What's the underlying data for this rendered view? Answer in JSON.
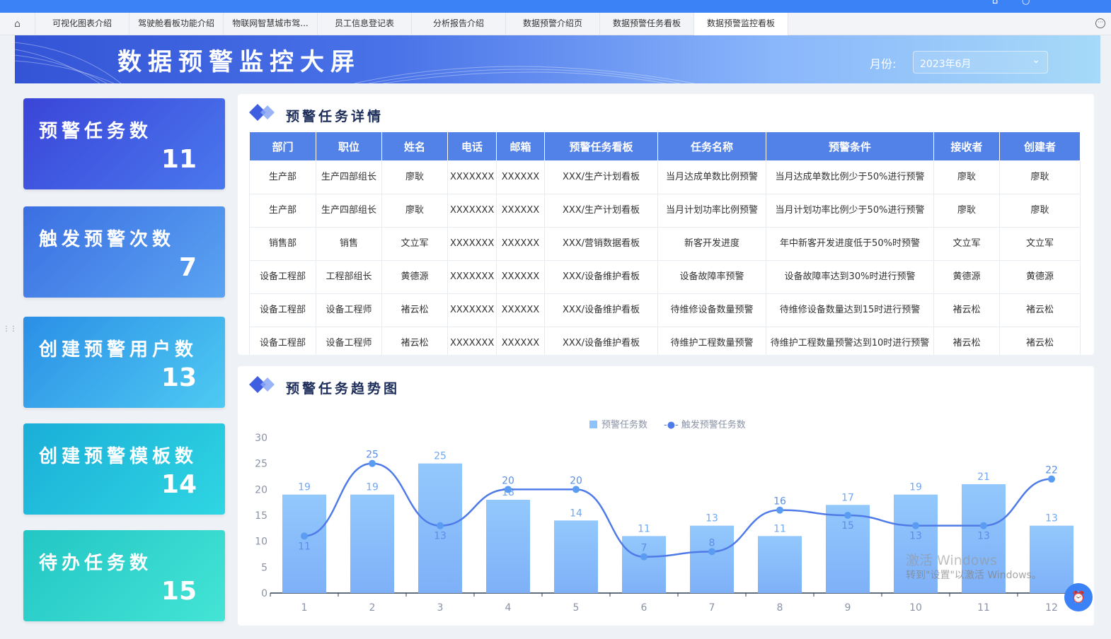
{
  "tabs": {
    "items": [
      "可视化图表介绍",
      "驾驶舱看板功能介绍",
      "物联网智慧城市驾...",
      "员工信息登记表",
      "分析报告介绍",
      "数据预警介绍页",
      "数据预警任务看板",
      "数据预警监控看板"
    ],
    "active": "数据预警监控看板"
  },
  "banner": {
    "title": "数据预警监控大屏",
    "month_label": "月份:",
    "month_value": "2023年6月"
  },
  "cards": [
    {
      "label": "预警任务数",
      "value": "11"
    },
    {
      "label": "触发预警次数",
      "value": "7"
    },
    {
      "label": "创建预警用户数",
      "value": "13"
    },
    {
      "label": "创建预警模板数",
      "value": "14"
    },
    {
      "label": "待办任务数",
      "value": "15"
    }
  ],
  "table_panel": {
    "title": "预警任务详情",
    "columns": [
      "部门",
      "职位",
      "姓名",
      "电话",
      "邮箱",
      "预警任务看板",
      "任务名称",
      "预警条件",
      "接收者",
      "创建者"
    ],
    "rows": [
      [
        "生产部",
        "生产四部组长",
        "廖耿",
        "XXXXXXX",
        "XXXXXX",
        "XXX/生产计划看板",
        "当月达成单数比例预警",
        "当月达成单数比例少于50%进行预警",
        "廖耿",
        "廖耿"
      ],
      [
        "生产部",
        "生产四部组长",
        "廖耿",
        "XXXXXXX",
        "XXXXXX",
        "XXX/生产计划看板",
        "当月计划功率比例预警",
        "当月计划功率比例少于50%进行预警",
        "廖耿",
        "廖耿"
      ],
      [
        "销售部",
        "销售",
        "文立军",
        "XXXXXXX",
        "XXXXXX",
        "XXX/营销数据看板",
        "新客开发进度",
        "年中新客开发进度低于50%时预警",
        "文立军",
        "文立军"
      ],
      [
        "设备工程部",
        "工程部组长",
        "黄德源",
        "XXXXXXX",
        "XXXXXX",
        "XXX/设备维护看板",
        "设备故障率预警",
        "设备故障率达到30%时进行预警",
        "黄德源",
        "黄德源"
      ],
      [
        "设备工程部",
        "设备工程师",
        "褚云松",
        "XXXXXXX",
        "XXXXXX",
        "XXX/设备维护看板",
        "待维修设备数量预警",
        "待维修设备数量达到15时进行预警",
        "褚云松",
        "褚云松"
      ],
      [
        "设备工程部",
        "设备工程师",
        "褚云松",
        "XXXXXXX",
        "XXXXXX",
        "XXX/设备维护看板",
        "待维护工程数量预警",
        "待维护工程数量预警达到10时进行预警",
        "褚云松",
        "褚云松"
      ]
    ]
  },
  "chart_panel": {
    "title": "预警任务趋势图"
  },
  "chart_data": {
    "type": "bar",
    "categories": [
      "1",
      "2",
      "3",
      "4",
      "5",
      "6",
      "7",
      "8",
      "9",
      "10",
      "11",
      "12"
    ],
    "series": [
      {
        "name": "预警任务数",
        "type": "bar",
        "color": "#8ec2fb",
        "values": [
          19,
          19,
          25,
          18,
          14,
          11,
          13,
          11,
          17,
          19,
          21,
          13
        ]
      },
      {
        "name": "触发预警任务数",
        "type": "line",
        "color": "#4f7be8",
        "values": [
          11,
          25,
          13,
          20,
          20,
          7,
          8,
          16,
          15,
          13,
          13,
          22
        ]
      }
    ],
    "ylim": [
      0,
      30
    ],
    "yticks": [
      0,
      5,
      10,
      15,
      20,
      25,
      30
    ],
    "legend": "top-center",
    "grid": false
  },
  "watermark": {
    "line1": "激活 Windows",
    "line2": "转到\"设置\"以激活 Windows。"
  }
}
